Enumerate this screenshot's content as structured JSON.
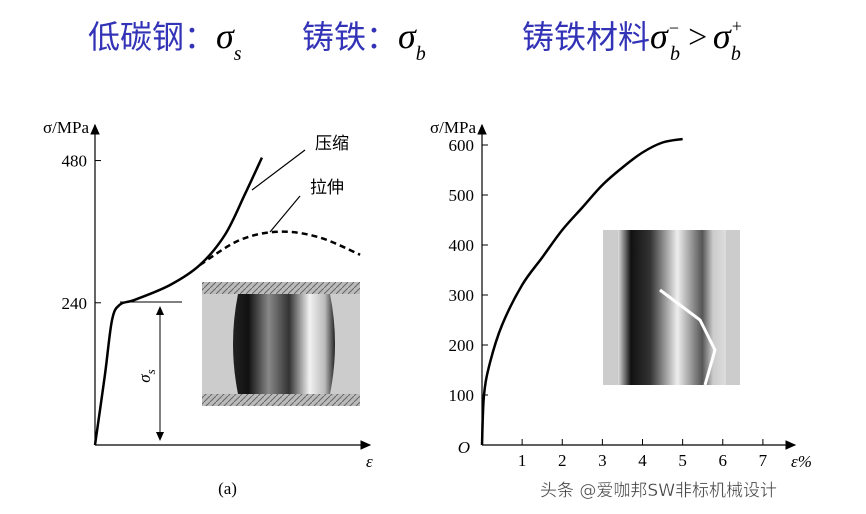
{
  "heading": {
    "items": [
      {
        "text": "低碳钢：",
        "symbol": "σ",
        "sub": "s"
      },
      {
        "text": "铸铁：",
        "symbol": "σ",
        "sub": "b"
      },
      {
        "text": "铸铁材料",
        "symbol": "σ",
        "sub": "b",
        "sup": "−",
        "relation": ">",
        "symbol2": "σ",
        "sub2": "b",
        "sup2": "+"
      }
    ]
  },
  "chart_data": [
    {
      "type": "line",
      "caption": "(a)",
      "ylabel": "σ/MPa",
      "xlabel": "ε",
      "annotation": {
        "symbol": "σ",
        "sub": "s"
      },
      "xlim": [
        0,
        10
      ],
      "ylim": [
        0,
        540
      ],
      "yticks": [
        240,
        480
      ],
      "series": [
        {
          "name": "压缩",
          "color": "#000000",
          "line_style": "solid",
          "x": [
            0,
            0.36,
            0.62,
            0.91,
            1.45,
            2.73,
            3.82,
            4.73,
            5.45,
            6.07
          ],
          "values": [
            0,
            118,
            211,
            237,
            245,
            270,
            304,
            355,
            423,
            485
          ]
        },
        {
          "name": "拉伸",
          "color": "#000000",
          "line_style": "dashed",
          "x": [
            3.82,
            5.27,
            6.73,
            8.18,
            9.64
          ],
          "values": [
            304,
            346,
            360,
            350,
            321
          ]
        }
      ]
    },
    {
      "type": "line",
      "ylabel": "σ/MPa",
      "xlabel": "ε%",
      "origin_label": "O",
      "xlim": [
        0,
        7.8
      ],
      "ylim": [
        0,
        640
      ],
      "xticks": [
        1,
        2,
        3,
        4,
        5,
        6,
        7
      ],
      "yticks": [
        100,
        200,
        300,
        400,
        500,
        600
      ],
      "series": [
        {
          "color": "#000000",
          "line_style": "solid",
          "x": [
            0,
            0.05,
            0.2,
            0.5,
            1,
            1.5,
            2,
            2.5,
            3,
            3.5,
            4,
            4.5,
            5
          ],
          "values": [
            0,
            100,
            165,
            240,
            320,
            375,
            430,
            475,
            520,
            555,
            585,
            605,
            612
          ]
        }
      ]
    }
  ],
  "watermark": "头条 @爱咖邦SW非标机械设计"
}
